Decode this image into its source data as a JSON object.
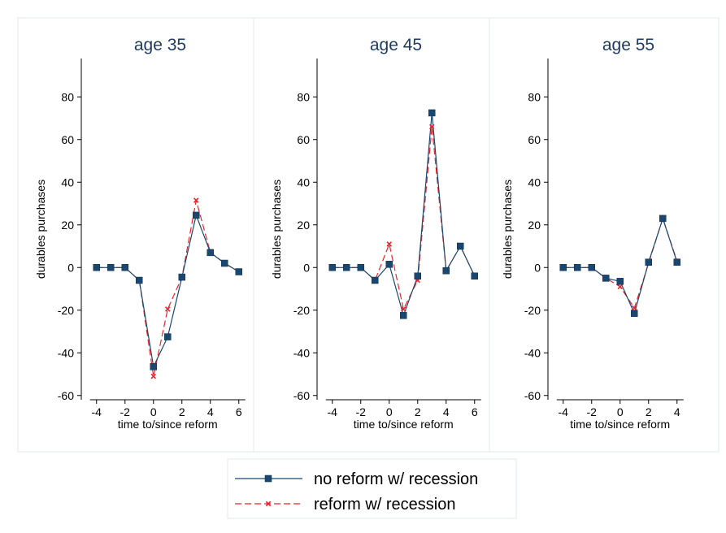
{
  "chart_data": {
    "type": "line",
    "ylabel": "durables purchases",
    "xlabel": "time to/since reform",
    "yticks": [
      -60,
      -40,
      -20,
      0,
      20,
      40,
      60,
      80
    ],
    "ylim": [
      -62,
      98
    ],
    "series_styles": [
      {
        "name": "no reform w/ recession",
        "color": "#1a476f",
        "line": "solid",
        "marker": "square"
      },
      {
        "name": "reform w/ recession",
        "color": "#e8252b",
        "line": "dashed",
        "marker": "x"
      }
    ],
    "legend": {
      "position": "bottom",
      "items": [
        "no reform w/ recession",
        "reform w/ recession"
      ]
    },
    "panels": [
      {
        "title": "age 35",
        "x": [
          -4,
          -3,
          -2,
          -1,
          0,
          1,
          2,
          3,
          4,
          5,
          6
        ],
        "xticks": [
          -4,
          -2,
          0,
          2,
          4,
          6
        ],
        "xlim": [
          -4.5,
          6.5
        ],
        "series": [
          {
            "name": "no reform w/ recession",
            "values": [
              0,
              0,
              0,
              -6,
              -46.5,
              -32.5,
              -4.5,
              24.5,
              7,
              2,
              -2
            ]
          },
          {
            "name": "reform w/ recession",
            "values": [
              0,
              0,
              0,
              -6,
              -51,
              -19.5,
              -4.5,
              31.5,
              7,
              2,
              -2
            ]
          }
        ]
      },
      {
        "title": "age 45",
        "x": [
          -4,
          -3,
          -2,
          -1,
          0,
          1,
          2,
          3,
          4,
          5,
          6
        ],
        "xticks": [
          -4,
          -2,
          0,
          2,
          4,
          6
        ],
        "xlim": [
          -4.5,
          6.5
        ],
        "series": [
          {
            "name": "no reform w/ recession",
            "values": [
              0,
              0,
              0,
              -6,
              1.5,
              -22.5,
              -4,
              72.5,
              -1.5,
              10,
              -4
            ]
          },
          {
            "name": "reform w/ recession",
            "values": [
              0,
              0,
              0,
              -6,
              11,
              -19.5,
              -6,
              66,
              -1.5,
              10,
              -4
            ]
          }
        ]
      },
      {
        "title": "age 55",
        "x": [
          -4,
          -3,
          -2,
          -1,
          0,
          1,
          2,
          3,
          4
        ],
        "xticks": [
          -4,
          -2,
          0,
          2,
          4
        ],
        "xlim": [
          -4.5,
          4.5
        ],
        "series": [
          {
            "name": "no reform w/ recession",
            "values": [
              0,
              0,
              0,
              -5,
              -6.5,
              -21.5,
              2.5,
              23,
              2.5
            ]
          },
          {
            "name": "reform w/ recession",
            "values": [
              0,
              0,
              0,
              -5,
              -9,
              -19,
              2,
              23,
              3
            ]
          }
        ]
      }
    ]
  }
}
